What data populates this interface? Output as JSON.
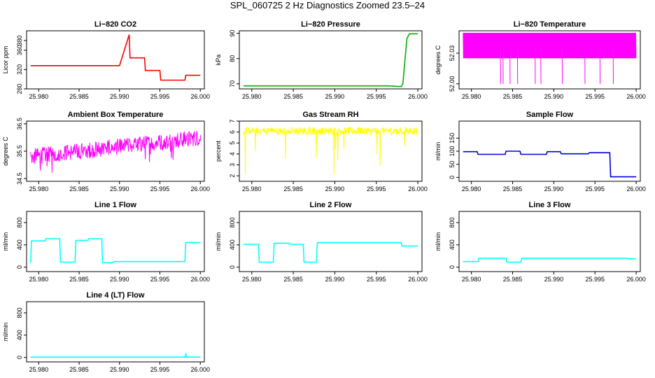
{
  "title": "SPL_060725  2 Hz Diagnostics Zoomed 23.5–24",
  "x_ticks": [
    "25.980",
    "25.985",
    "25.990",
    "25.995",
    "26.000"
  ],
  "chart_data": [
    {
      "type": "line",
      "title": "Li−820 CO2",
      "ylabel": "Licor ppm",
      "color": "#ff0000",
      "xlim": [
        25.9785,
        26.0005
      ],
      "ylim": [
        280,
        400
      ],
      "yticks": [
        280,
        320,
        360,
        380
      ],
      "yticklabels": [
        "280",
        "320",
        "360",
        "380"
      ],
      "series": [
        {
          "name": "CO2",
          "x": [
            25.979,
            25.9899,
            25.99,
            25.9912,
            25.9913,
            25.9931,
            25.9932,
            25.995,
            25.9951,
            25.9981,
            25.9982,
            26.0
          ],
          "values": [
            328,
            328,
            328,
            392,
            344,
            344,
            318,
            318,
            298,
            298,
            308,
            308
          ]
        }
      ]
    },
    {
      "type": "line",
      "title": "Li−820 Pressure",
      "ylabel": "kPa",
      "color": "#00b000",
      "xlim": [
        25.9785,
        26.0005
      ],
      "ylim": [
        68,
        91
      ],
      "yticks": [
        70,
        80,
        90
      ],
      "yticklabels": [
        "70",
        "80",
        "90"
      ],
      "series": [
        {
          "name": "Pressure",
          "x": [
            25.979,
            25.9965,
            25.998,
            25.9982,
            25.9986,
            25.9987,
            25.999,
            26.0
          ],
          "values": [
            69.2,
            69.2,
            68.9,
            70,
            85,
            88,
            89.8,
            89.8
          ]
        }
      ]
    },
    {
      "type": "line",
      "title": "Li−820 Temperature",
      "ylabel": "degrees C",
      "color": "#ff00ff",
      "xlim": [
        25.9785,
        26.0005
      ],
      "ylim": [
        51.995,
        52.052
      ],
      "yticks": [
        52.0,
        52.03
      ],
      "yticklabels": [
        "52.00",
        "52.03"
      ],
      "series": [
        {
          "name": "Temperature",
          "x": [
            25.979,
            26.0
          ],
          "values": [
            52.05,
            52.025
          ]
        }
      ]
    },
    {
      "type": "line",
      "title": "Ambient Box Temperature",
      "ylabel": "degrees C",
      "color": "#ff00ff",
      "xlim": [
        25.9785,
        26.0005
      ],
      "ylim": [
        34.4,
        36.6
      ],
      "yticks": [
        34.5,
        35.5,
        36.5
      ],
      "yticklabels": [
        "34.5",
        "35.5",
        "36.5"
      ],
      "series": [
        {
          "name": "Ambient",
          "x": [
            25.979,
            26.0
          ],
          "values": [
            35.3,
            36.0
          ]
        }
      ]
    },
    {
      "type": "line",
      "title": "Gas Stream RH",
      "ylabel": "percent",
      "color": "#ffff00",
      "xlim": [
        25.9785,
        26.0005
      ],
      "ylim": [
        1.5,
        7.0
      ],
      "yticks": [
        2,
        3,
        4,
        5,
        6,
        7
      ],
      "yticklabels": [
        "2",
        "3",
        "4",
        "5",
        "6",
        "7"
      ],
      "series": [
        {
          "name": "RH",
          "x": [
            25.979,
            26.0
          ],
          "values": [
            6.1,
            6.1
          ]
        }
      ]
    },
    {
      "type": "line",
      "title": "Sample Flow",
      "ylabel": "ml/min",
      "color": "#0000dd",
      "xlim": [
        25.9785,
        26.0005
      ],
      "ylim": [
        -15,
        215
      ],
      "yticks": [
        0,
        50,
        100,
        150
      ],
      "yticklabels": [
        "0",
        "50",
        "100",
        "150"
      ],
      "series": [
        {
          "name": "Sample",
          "x": [
            25.979,
            25.9807,
            25.9808,
            25.9841,
            25.9842,
            25.9859,
            25.986,
            25.9891,
            25.9892,
            25.9908,
            25.9909,
            25.9942,
            25.9943,
            25.9968,
            25.9969,
            26.0
          ],
          "values": [
            98,
            98,
            88,
            88,
            100,
            100,
            88,
            88,
            98,
            98,
            90,
            90,
            94,
            94,
            2,
            2
          ]
        }
      ]
    },
    {
      "type": "line",
      "title": "Line 1 Flow",
      "ylabel": "ml/min",
      "color": "#00ffff",
      "xlim": [
        25.9785,
        26.0005
      ],
      "ylim": [
        -80,
        1000
      ],
      "yticks": [
        0,
        400,
        800
      ],
      "yticklabels": [
        "0",
        "400",
        "800"
      ],
      "series": [
        {
          "name": "Line1",
          "x": [
            25.979,
            25.9791,
            25.9808,
            25.9809,
            25.9826,
            25.9827,
            25.9845,
            25.9846,
            25.9861,
            25.9862,
            25.9878,
            25.9879,
            25.9892,
            25.9893,
            25.9981,
            25.9982,
            26.0
          ],
          "values": [
            80,
            470,
            470,
            510,
            510,
            90,
            90,
            480,
            480,
            510,
            510,
            80,
            80,
            100,
            100,
            440,
            440
          ]
        }
      ]
    },
    {
      "type": "line",
      "title": "Line 2 Flow",
      "ylabel": "ml/min",
      "color": "#00ffff",
      "xlim": [
        25.9785,
        26.0005
      ],
      "ylim": [
        -80,
        1000
      ],
      "yticks": [
        0,
        400,
        800
      ],
      "yticklabels": [
        "0",
        "400",
        "800"
      ],
      "series": [
        {
          "name": "Line2",
          "x": [
            25.979,
            25.9808,
            25.9809,
            25.9826,
            25.9827,
            25.9845,
            25.9846,
            25.9862,
            25.9863,
            25.9878,
            25.9879,
            25.998,
            25.9981,
            26.0
          ],
          "values": [
            410,
            410,
            90,
            90,
            430,
            430,
            410,
            410,
            90,
            90,
            440,
            440,
            380,
            380
          ]
        }
      ]
    },
    {
      "type": "line",
      "title": "Line 3 Flow",
      "ylabel": "ml/min",
      "color": "#00ffff",
      "xlim": [
        25.9785,
        26.0005
      ],
      "ylim": [
        -80,
        1000
      ],
      "yticks": [
        0,
        400,
        800
      ],
      "yticklabels": [
        "0",
        "400",
        "800"
      ],
      "series": [
        {
          "name": "Line3",
          "x": [
            25.979,
            25.9808,
            25.9809,
            25.9842,
            25.9843,
            25.986,
            25.9861,
            25.999,
            25.9991,
            26.0
          ],
          "values": [
            100,
            100,
            160,
            160,
            90,
            90,
            160,
            160,
            150,
            150
          ]
        }
      ]
    },
    {
      "type": "line",
      "title": "Line 4 (LT) Flow",
      "ylabel": "ml/min",
      "color": "#00ffff",
      "xlim": [
        25.9785,
        26.0005
      ],
      "ylim": [
        -80,
        1000
      ],
      "yticks": [
        0,
        400,
        800
      ],
      "yticklabels": [
        "0",
        "400",
        "800"
      ],
      "series": [
        {
          "name": "Line4",
          "x": [
            25.979,
            25.9981,
            25.9982,
            25.9983,
            26.0
          ],
          "values": [
            5,
            5,
            60,
            5,
            5
          ]
        }
      ]
    }
  ]
}
